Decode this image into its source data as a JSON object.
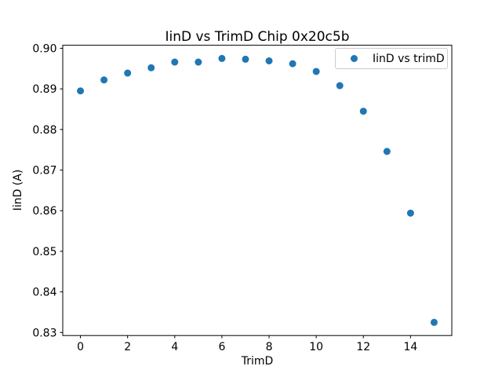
{
  "chart_data": {
    "type": "scatter",
    "title": "IinD vs TrimD Chip 0x20c5b",
    "xlabel": "TrimD",
    "ylabel": "IinD (A)",
    "legend": {
      "label": "IinD vs trimD",
      "position": "upper right"
    },
    "grid": false,
    "marker_color": "#1f77b4",
    "axis_color": "#000000",
    "legend_border_color": "#cccccc",
    "x": [
      0,
      1,
      2,
      3,
      4,
      5,
      6,
      7,
      8,
      9,
      10,
      11,
      12,
      13,
      14,
      15
    ],
    "y": [
      0.8895,
      0.8922,
      0.8939,
      0.8952,
      0.8966,
      0.8966,
      0.8975,
      0.8973,
      0.8969,
      0.8962,
      0.8943,
      0.8908,
      0.8845,
      0.8746,
      0.8594,
      0.8325
    ],
    "series": [
      {
        "name": "IinD vs trimD",
        "x": [
          0,
          1,
          2,
          3,
          4,
          5,
          6,
          7,
          8,
          9,
          10,
          11,
          12,
          13,
          14,
          15
        ],
        "y": [
          0.8895,
          0.8922,
          0.8939,
          0.8952,
          0.8966,
          0.8966,
          0.8975,
          0.8973,
          0.8969,
          0.8962,
          0.8943,
          0.8908,
          0.8845,
          0.8746,
          0.8594,
          0.8325
        ]
      }
    ],
    "xlim": [
      -0.75,
      15.75
    ],
    "ylim": [
      0.82925,
      0.90075
    ],
    "xticks": {
      "values": [
        0,
        2,
        4,
        6,
        8,
        10,
        12,
        14
      ],
      "labels": [
        "0",
        "2",
        "4",
        "6",
        "8",
        "10",
        "12",
        "14"
      ]
    },
    "yticks": {
      "values": [
        0.83,
        0.84,
        0.85,
        0.86,
        0.87,
        0.88,
        0.89,
        0.9
      ],
      "labels": [
        "0.83",
        "0.84",
        "0.85",
        "0.86",
        "0.87",
        "0.88",
        "0.89",
        "0.90"
      ]
    }
  }
}
